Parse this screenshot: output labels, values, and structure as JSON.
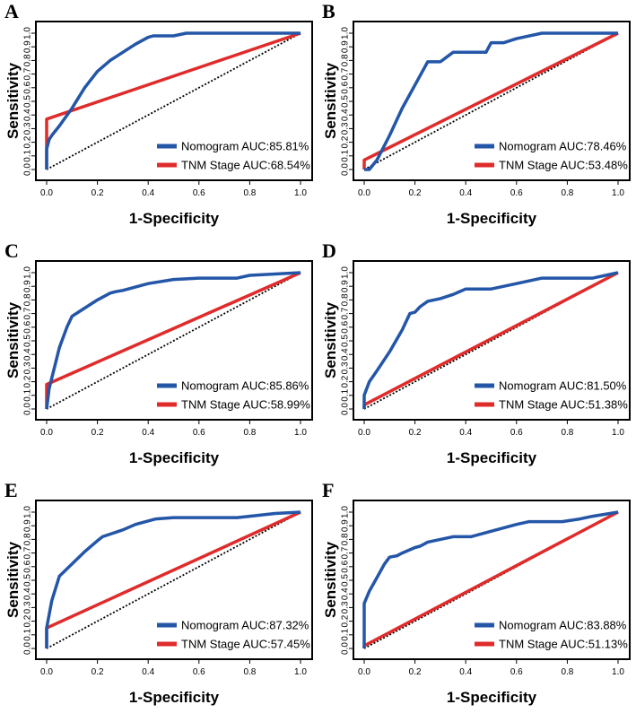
{
  "figure": {
    "colors": {
      "nomogram": "#2456a8",
      "tnm": "#e02b2b",
      "diagonal": "#000000",
      "frame": "#000000"
    }
  },
  "chart_data": [
    {
      "panel": "A",
      "type": "line",
      "xlabel": "1-Specificity",
      "ylabel": "Sensitivity",
      "xlim": [
        0,
        1
      ],
      "ylim": [
        0,
        1
      ],
      "xticks": [
        "0.0",
        "0.2",
        "0.4",
        "0.6",
        "0.8",
        "1.0"
      ],
      "yticks": [
        "0.0",
        "0.1",
        "0.2",
        "0.3",
        "0.4",
        "0.5",
        "0.6",
        "0.7",
        "0.8",
        "0.9",
        "1.0"
      ],
      "legend": "bottom-right",
      "series": [
        {
          "name": "Nomogram",
          "label": "Nomogram AUC:85.81%",
          "x": [
            0,
            0,
            0.01,
            0.02,
            0.05,
            0.1,
            0.15,
            0.2,
            0.25,
            0.3,
            0.35,
            0.4,
            0.42,
            0.5,
            0.55,
            0.6,
            0.7,
            0.8,
            0.9,
            1.0
          ],
          "y": [
            0,
            0.15,
            0.22,
            0.25,
            0.32,
            0.45,
            0.6,
            0.72,
            0.8,
            0.86,
            0.92,
            0.97,
            0.98,
            0.98,
            1.0,
            1.0,
            1.0,
            1.0,
            1.0,
            1.0
          ]
        },
        {
          "name": "TNM Stage",
          "label": "TNM Stage AUC:68.54%",
          "x": [
            0,
            0,
            1.0
          ],
          "y": [
            0,
            0.37,
            1.0
          ]
        }
      ]
    },
    {
      "panel": "B",
      "type": "line",
      "xlabel": "1-Specificity",
      "ylabel": "Sensitivity",
      "xlim": [
        0,
        1
      ],
      "ylim": [
        0,
        1
      ],
      "xticks": [
        "0.0",
        "0.2",
        "0.4",
        "0.6",
        "0.8",
        "1.0"
      ],
      "yticks": [
        "0.0",
        "0.1",
        "0.2",
        "0.3",
        "0.4",
        "0.5",
        "0.6",
        "0.7",
        "0.8",
        "0.9",
        "1.0"
      ],
      "legend": "bottom-right",
      "series": [
        {
          "name": "Nomogram",
          "label": "Nomogram AUC:78.46%",
          "x": [
            0,
            0.02,
            0.05,
            0.1,
            0.15,
            0.2,
            0.25,
            0.3,
            0.35,
            0.4,
            0.48,
            0.5,
            0.55,
            0.6,
            0.7,
            0.8,
            0.9,
            1.0
          ],
          "y": [
            0,
            0.0,
            0.07,
            0.25,
            0.45,
            0.62,
            0.79,
            0.79,
            0.86,
            0.86,
            0.86,
            0.93,
            0.93,
            0.96,
            1.0,
            1.0,
            1.0,
            1.0
          ]
        },
        {
          "name": "TNM Stage",
          "label": "TNM Stage AUC:53.48%",
          "x": [
            0,
            0,
            1.0
          ],
          "y": [
            0,
            0.07,
            1.0
          ]
        }
      ]
    },
    {
      "panel": "C",
      "type": "line",
      "xlabel": "1-Specificity",
      "ylabel": "Sensitivity",
      "xlim": [
        0,
        1
      ],
      "ylim": [
        0,
        1
      ],
      "xticks": [
        "0.0",
        "0.2",
        "0.4",
        "0.6",
        "0.8",
        "1.0"
      ],
      "yticks": [
        "0.0",
        "0.1",
        "0.2",
        "0.3",
        "0.4",
        "0.5",
        "0.6",
        "0.7",
        "0.8",
        "0.9",
        "1.0"
      ],
      "legend": "bottom-right",
      "series": [
        {
          "name": "Nomogram",
          "label": "Nomogram AUC:85.86%",
          "x": [
            0,
            0.01,
            0.03,
            0.05,
            0.08,
            0.1,
            0.15,
            0.2,
            0.25,
            0.27,
            0.3,
            0.4,
            0.5,
            0.6,
            0.75,
            0.8,
            0.9,
            1.0
          ],
          "y": [
            0,
            0.15,
            0.3,
            0.45,
            0.6,
            0.68,
            0.74,
            0.8,
            0.85,
            0.86,
            0.87,
            0.92,
            0.95,
            0.96,
            0.96,
            0.98,
            0.99,
            1.0
          ]
        },
        {
          "name": "TNM Stage",
          "label": "TNM Stage AUC:58.99%",
          "x": [
            0,
            0,
            1.0
          ],
          "y": [
            0,
            0.18,
            1.0
          ]
        }
      ]
    },
    {
      "panel": "D",
      "type": "line",
      "xlabel": "1-Specificity",
      "ylabel": "Sensitivity",
      "xlim": [
        0,
        1
      ],
      "ylim": [
        0,
        1
      ],
      "xticks": [
        "0.0",
        "0.2",
        "0.4",
        "0.6",
        "0.8",
        "1.0"
      ],
      "yticks": [
        "0.0",
        "0.1",
        "0.2",
        "0.3",
        "0.4",
        "0.5",
        "0.6",
        "0.7",
        "0.8",
        "0.9",
        "1.0"
      ],
      "legend": "bottom-right",
      "series": [
        {
          "name": "Nomogram",
          "label": "Nomogram AUC:81.50%",
          "x": [
            0,
            0,
            0.02,
            0.05,
            0.1,
            0.15,
            0.18,
            0.2,
            0.22,
            0.25,
            0.3,
            0.35,
            0.4,
            0.5,
            0.6,
            0.7,
            0.8,
            0.9,
            1.0
          ],
          "y": [
            0,
            0.1,
            0.2,
            0.28,
            0.42,
            0.58,
            0.7,
            0.71,
            0.75,
            0.79,
            0.81,
            0.84,
            0.88,
            0.88,
            0.92,
            0.96,
            0.96,
            0.96,
            1.0
          ]
        },
        {
          "name": "TNM Stage",
          "label": "TNM Stage AUC:51.38%",
          "x": [
            0,
            0,
            1.0
          ],
          "y": [
            0,
            0.03,
            1.0
          ]
        }
      ]
    },
    {
      "panel": "E",
      "type": "line",
      "xlabel": "1-Specificity",
      "ylabel": "Sensitivity",
      "xlim": [
        0,
        1
      ],
      "ylim": [
        0,
        1
      ],
      "xticks": [
        "0.0",
        "0.2",
        "0.4",
        "0.6",
        "0.8",
        "1.0"
      ],
      "yticks": [
        "0.0",
        "0.1",
        "0.2",
        "0.3",
        "0.4",
        "0.5",
        "0.6",
        "0.7",
        "0.8",
        "0.9",
        "1.0"
      ],
      "legend": "bottom-right",
      "series": [
        {
          "name": "Nomogram",
          "label": "Nomogram AUC:87.32%",
          "x": [
            0,
            0,
            0.02,
            0.05,
            0.1,
            0.15,
            0.2,
            0.22,
            0.3,
            0.35,
            0.43,
            0.5,
            0.6,
            0.75,
            0.8,
            0.9,
            1.0
          ],
          "y": [
            0,
            0.15,
            0.35,
            0.53,
            0.62,
            0.71,
            0.79,
            0.82,
            0.87,
            0.91,
            0.95,
            0.96,
            0.96,
            0.96,
            0.97,
            0.99,
            1.0
          ]
        },
        {
          "name": "TNM Stage",
          "label": "TNM Stage AUC:57.45%",
          "x": [
            0,
            0,
            1.0
          ],
          "y": [
            0,
            0.15,
            1.0
          ]
        }
      ]
    },
    {
      "panel": "F",
      "type": "line",
      "xlabel": "1-Specificity",
      "ylabel": "Sensitivity",
      "xlim": [
        0,
        1
      ],
      "ylim": [
        0,
        1
      ],
      "xticks": [
        "0.0",
        "0.2",
        "0.4",
        "0.6",
        "0.8",
        "1.0"
      ],
      "yticks": [
        "0.0",
        "0.1",
        "0.2",
        "0.3",
        "0.4",
        "0.5",
        "0.6",
        "0.7",
        "0.8",
        "0.9",
        "1.0"
      ],
      "legend": "bottom-right",
      "series": [
        {
          "name": "Nomogram",
          "label": "Nomogram AUC:83.88%",
          "x": [
            0,
            0,
            0.02,
            0.05,
            0.08,
            0.1,
            0.13,
            0.15,
            0.2,
            0.22,
            0.25,
            0.3,
            0.35,
            0.42,
            0.5,
            0.6,
            0.65,
            0.78,
            0.85,
            0.9,
            1.0
          ],
          "y": [
            0,
            0.33,
            0.42,
            0.52,
            0.62,
            0.67,
            0.68,
            0.7,
            0.74,
            0.75,
            0.78,
            0.8,
            0.82,
            0.82,
            0.86,
            0.91,
            0.93,
            0.93,
            0.95,
            0.97,
            1.0
          ]
        },
        {
          "name": "TNM Stage",
          "label": "TNM Stage AUC:51.13%",
          "x": [
            0,
            0,
            1.0
          ],
          "y": [
            0,
            0.02,
            1.0
          ]
        }
      ]
    }
  ]
}
